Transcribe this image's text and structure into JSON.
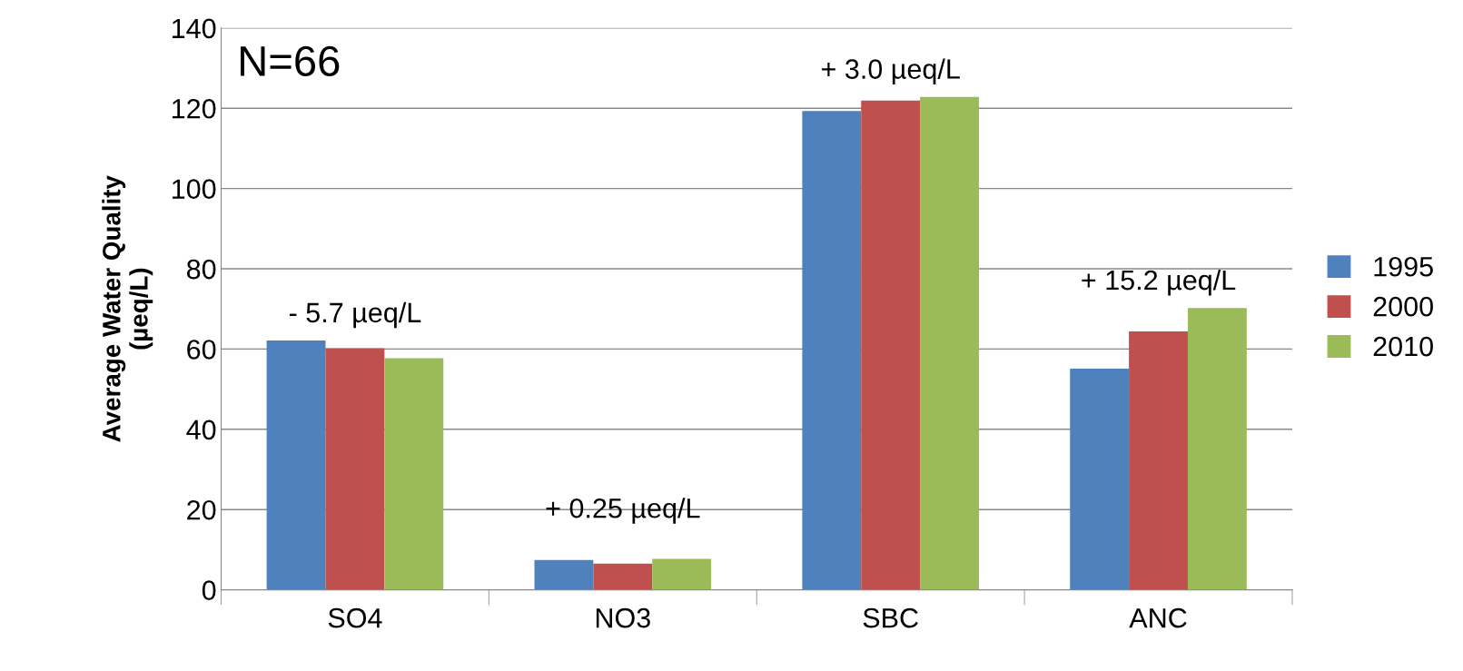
{
  "chart_data": {
    "type": "bar",
    "ylabel": "Average Water Quality\n(µeq/L)",
    "categories": [
      "SO4",
      "NO3",
      "SBC",
      "ANC"
    ],
    "series": [
      {
        "name": "1995",
        "color": "#4f81bd",
        "values": [
          62.1,
          7.4,
          119.3,
          55.1
        ]
      },
      {
        "name": "2000",
        "color": "#c0504d",
        "values": [
          60.2,
          6.5,
          121.9,
          64.4
        ]
      },
      {
        "name": "2010",
        "color": "#9bbb59",
        "values": [
          57.7,
          7.7,
          122.8,
          70.2
        ]
      }
    ],
    "ylim": [
      0,
      140
    ],
    "yticks": [
      0,
      20,
      40,
      60,
      80,
      100,
      120,
      140
    ],
    "grid": "y",
    "legend": "right",
    "annotations": [
      "N=66",
      "- 5.7 µeq/L",
      "+ 0.25 µeq/L",
      "+ 3.0 µeq/L",
      "+ 15.2 µeq/L"
    ]
  }
}
